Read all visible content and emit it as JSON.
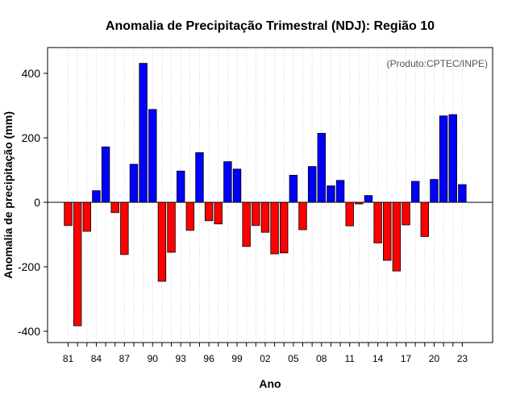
{
  "chart_data": {
    "type": "bar",
    "title": "Anomalia de Precipitação Trimestral (NDJ): Região 10",
    "xlabel": "Ano",
    "ylabel": "Anomalia de precipitação (mm)",
    "annotation": "(Produto:CPTEC/INPE)",
    "ylim": [
      -435,
      480
    ],
    "yticks": [
      -400,
      -200,
      0,
      200,
      400
    ],
    "xtick_labels": [
      "81",
      "84",
      "87",
      "90",
      "93",
      "96",
      "99",
      "02",
      "05",
      "08",
      "11",
      "14",
      "17",
      "20",
      "23"
    ],
    "grid": true,
    "categories": [
      "81",
      "82",
      "83",
      "84",
      "85",
      "86",
      "87",
      "88",
      "89",
      "90",
      "91",
      "92",
      "93",
      "94",
      "95",
      "96",
      "97",
      "98",
      "99",
      "00",
      "01",
      "02",
      "03",
      "04",
      "05",
      "06",
      "07",
      "08",
      "09",
      "10",
      "11",
      "12",
      "13",
      "14",
      "15",
      "16",
      "17",
      "18",
      "19",
      "20",
      "21",
      "22",
      "23"
    ],
    "values": [
      -72,
      -383,
      -90,
      36,
      172,
      -32,
      -162,
      118,
      431,
      288,
      -245,
      -155,
      97,
      -87,
      154,
      -57,
      -67,
      126,
      103,
      -137,
      -72,
      -93,
      -160,
      -157,
      84,
      -85,
      111,
      214,
      51,
      68,
      -73,
      -5,
      21,
      -126,
      -180,
      -213,
      -70,
      65,
      -106,
      71,
      268,
      272,
      55
    ],
    "colors": {
      "positive": "#0000ff",
      "negative": "#ff0000",
      "zero_line": "#000000",
      "grid": "#d3d3d3"
    }
  }
}
